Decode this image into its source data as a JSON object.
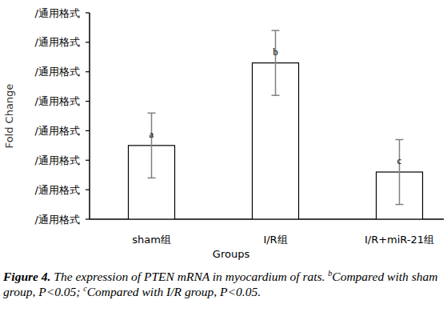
{
  "chart_data": {
    "type": "bar",
    "y_label": "Fold Change",
    "x_label": "Groups",
    "categories": [
      "sham组",
      "I/R组",
      "I/R+miR-21组"
    ],
    "values": [
      2.5,
      5.3,
      1.6
    ],
    "errors": [
      1.1,
      1.1,
      1.1
    ],
    "annotations": [
      "a",
      "b",
      "c"
    ],
    "color": "#ffffff",
    "ylim": [
      0,
      7
    ],
    "yticks": [
      {
        "value": 0,
        "label": "/通用格式"
      },
      {
        "value": 1,
        "label": "/通用格式"
      },
      {
        "value": 2,
        "label": "/通用格式"
      },
      {
        "value": 3,
        "label": "/通用格式"
      },
      {
        "value": 4,
        "label": "/通用格式"
      },
      {
        "value": 5,
        "label": "/通用格式"
      },
      {
        "value": 6,
        "label": "/通用格式"
      },
      {
        "value": 7,
        "label": "/通用格式"
      }
    ],
    "grid": false,
    "caption": {
      "label": "Figure 4.",
      "text": " The expression of PTEN mRNA in myocardium of rats. ",
      "notes": [
        {
          "mark": "b",
          "text": "Compared with sham group, P<0.05; "
        },
        {
          "mark": "c",
          "text": "Compared with I/R group, P<0.05."
        }
      ]
    }
  }
}
